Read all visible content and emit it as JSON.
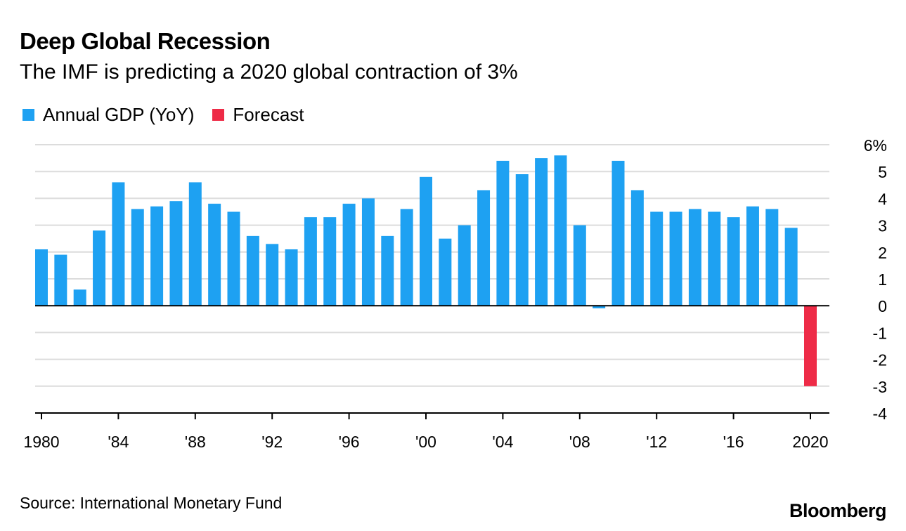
{
  "header": {
    "title": "Deep Global Recession",
    "subtitle": "The IMF is predicting a 2020 global contraction of 3%"
  },
  "legend": [
    {
      "label": "Annual GDP (YoY)",
      "color": "#1ea1f2"
    },
    {
      "label": "Forecast",
      "color": "#ee2b47"
    }
  ],
  "footer": {
    "source": "Source: International Monetary Fund",
    "brand": "Bloomberg"
  },
  "chart_data": {
    "type": "bar",
    "title": "Deep Global Recession",
    "subtitle": "The IMF is predicting a 2020 global contraction of 3%",
    "xlabel": "",
    "ylabel": "",
    "ylim": [
      -4,
      6
    ],
    "y_ticks": [
      6,
      5,
      4,
      3,
      2,
      1,
      0,
      -1,
      -2,
      -3,
      -4
    ],
    "y_tick_labels": [
      "6%",
      "5",
      "4",
      "3",
      "2",
      "1",
      "0",
      "-1",
      "-2",
      "-3",
      "-4"
    ],
    "x_tick_years": [
      1980,
      1984,
      1988,
      1992,
      1996,
      2000,
      2004,
      2008,
      2012,
      2016,
      2020
    ],
    "x_tick_labels": [
      "1980",
      "'84",
      "'88",
      "'92",
      "'96",
      "'00",
      "'04",
      "'08",
      "'12",
      "'16",
      "2020"
    ],
    "grid": true,
    "legend_position": "top-left",
    "series": [
      {
        "name": "Annual GDP (YoY)",
        "color": "#1ea1f2",
        "x": [
          1980,
          1981,
          1982,
          1983,
          1984,
          1985,
          1986,
          1987,
          1988,
          1989,
          1990,
          1991,
          1992,
          1993,
          1994,
          1995,
          1996,
          1997,
          1998,
          1999,
          2000,
          2001,
          2002,
          2003,
          2004,
          2005,
          2006,
          2007,
          2008,
          2009,
          2010,
          2011,
          2012,
          2013,
          2014,
          2015,
          2016,
          2017,
          2018,
          2019
        ],
        "values": [
          2.1,
          1.9,
          0.6,
          2.8,
          4.6,
          3.6,
          3.7,
          3.9,
          4.6,
          3.8,
          3.5,
          2.6,
          2.3,
          2.1,
          3.3,
          3.3,
          3.8,
          4.0,
          2.6,
          3.6,
          4.8,
          2.5,
          3.0,
          4.3,
          5.4,
          4.9,
          5.5,
          5.6,
          3.0,
          -0.1,
          5.4,
          4.3,
          3.5,
          3.5,
          3.6,
          3.5,
          3.3,
          3.7,
          3.6,
          2.9
        ]
      },
      {
        "name": "Forecast",
        "color": "#ee2b47",
        "x": [
          2020
        ],
        "values": [
          -3.0
        ]
      }
    ]
  }
}
